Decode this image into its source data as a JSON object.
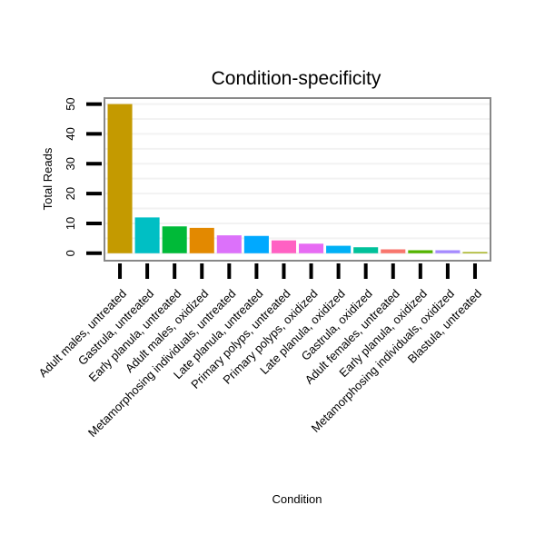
{
  "chart_data": {
    "type": "bar",
    "title": "Condition-specificity",
    "xlabel": "Condition",
    "ylabel": "Total Reads",
    "ylim": [
      -2.5,
      52
    ],
    "yticks": [
      0,
      10,
      20,
      30,
      40,
      50
    ],
    "grid": true,
    "categories": [
      "Adult males, untreated",
      "Gastrula, untreated",
      "Early planula, untreated",
      "Adult males, oxidized",
      "Metamorphosing individuals, untreated",
      "Late planula, untreated",
      "Primary polyps, untreated",
      "Primary polyps, oxidized",
      "Late planula, oxidized",
      "Gastrula, oxidized",
      "Adult females, untreated",
      "Early planula, oxidized",
      "Metamorphosing individuals, oxidized",
      "Blastula, untreated"
    ],
    "values": [
      50,
      12,
      9,
      8.5,
      6,
      5.8,
      4.3,
      3.2,
      2.5,
      2,
      1.3,
      1,
      1,
      0.4
    ],
    "colors": [
      "#C49A00",
      "#00BFC4",
      "#00BA38",
      "#E38900",
      "#DC71FA",
      "#00A9FF",
      "#FF61C3",
      "#E76BF3",
      "#00B0F6",
      "#00C19A",
      "#F8766D",
      "#53B400",
      "#A58AFF",
      "#99A800"
    ]
  }
}
